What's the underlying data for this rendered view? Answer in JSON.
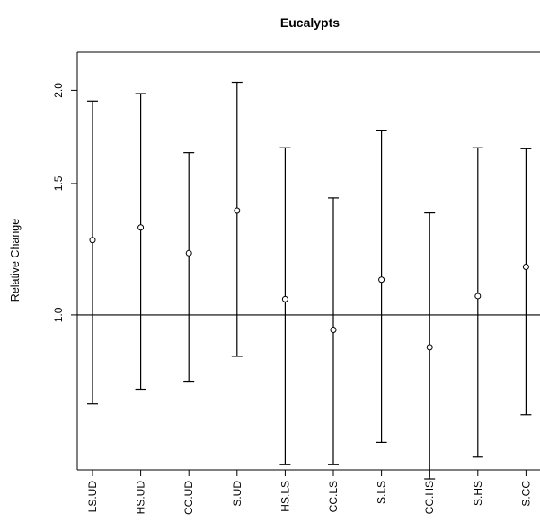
{
  "chart_data": {
    "type": "errorbar",
    "title": "Eucalypts",
    "ylabel": "Relative Change",
    "xlabel": "",
    "y_scale": "log",
    "ylim": [
      0.62,
      2.25
    ],
    "y_ticks": [
      "1.0",
      "1.5",
      "2.0"
    ],
    "reference_line": 1.0,
    "grid": false,
    "categories": [
      "LS.UD",
      "HS.UD",
      "CC.UD",
      "S.UD",
      "HS.LS",
      "CC.LS",
      "S.LS",
      "CC.HS",
      "S.HS",
      "S.CC"
    ],
    "estimates": [
      1.26,
      1.31,
      1.21,
      1.38,
      1.05,
      0.955,
      1.115,
      0.905,
      1.06,
      1.16
    ],
    "lower": [
      0.76,
      0.795,
      0.815,
      0.88,
      0.63,
      0.63,
      0.675,
      0.603,
      0.645,
      0.735
    ],
    "upper": [
      1.935,
      1.98,
      1.65,
      2.05,
      1.675,
      1.435,
      1.765,
      1.37,
      1.675,
      1.67
    ]
  }
}
